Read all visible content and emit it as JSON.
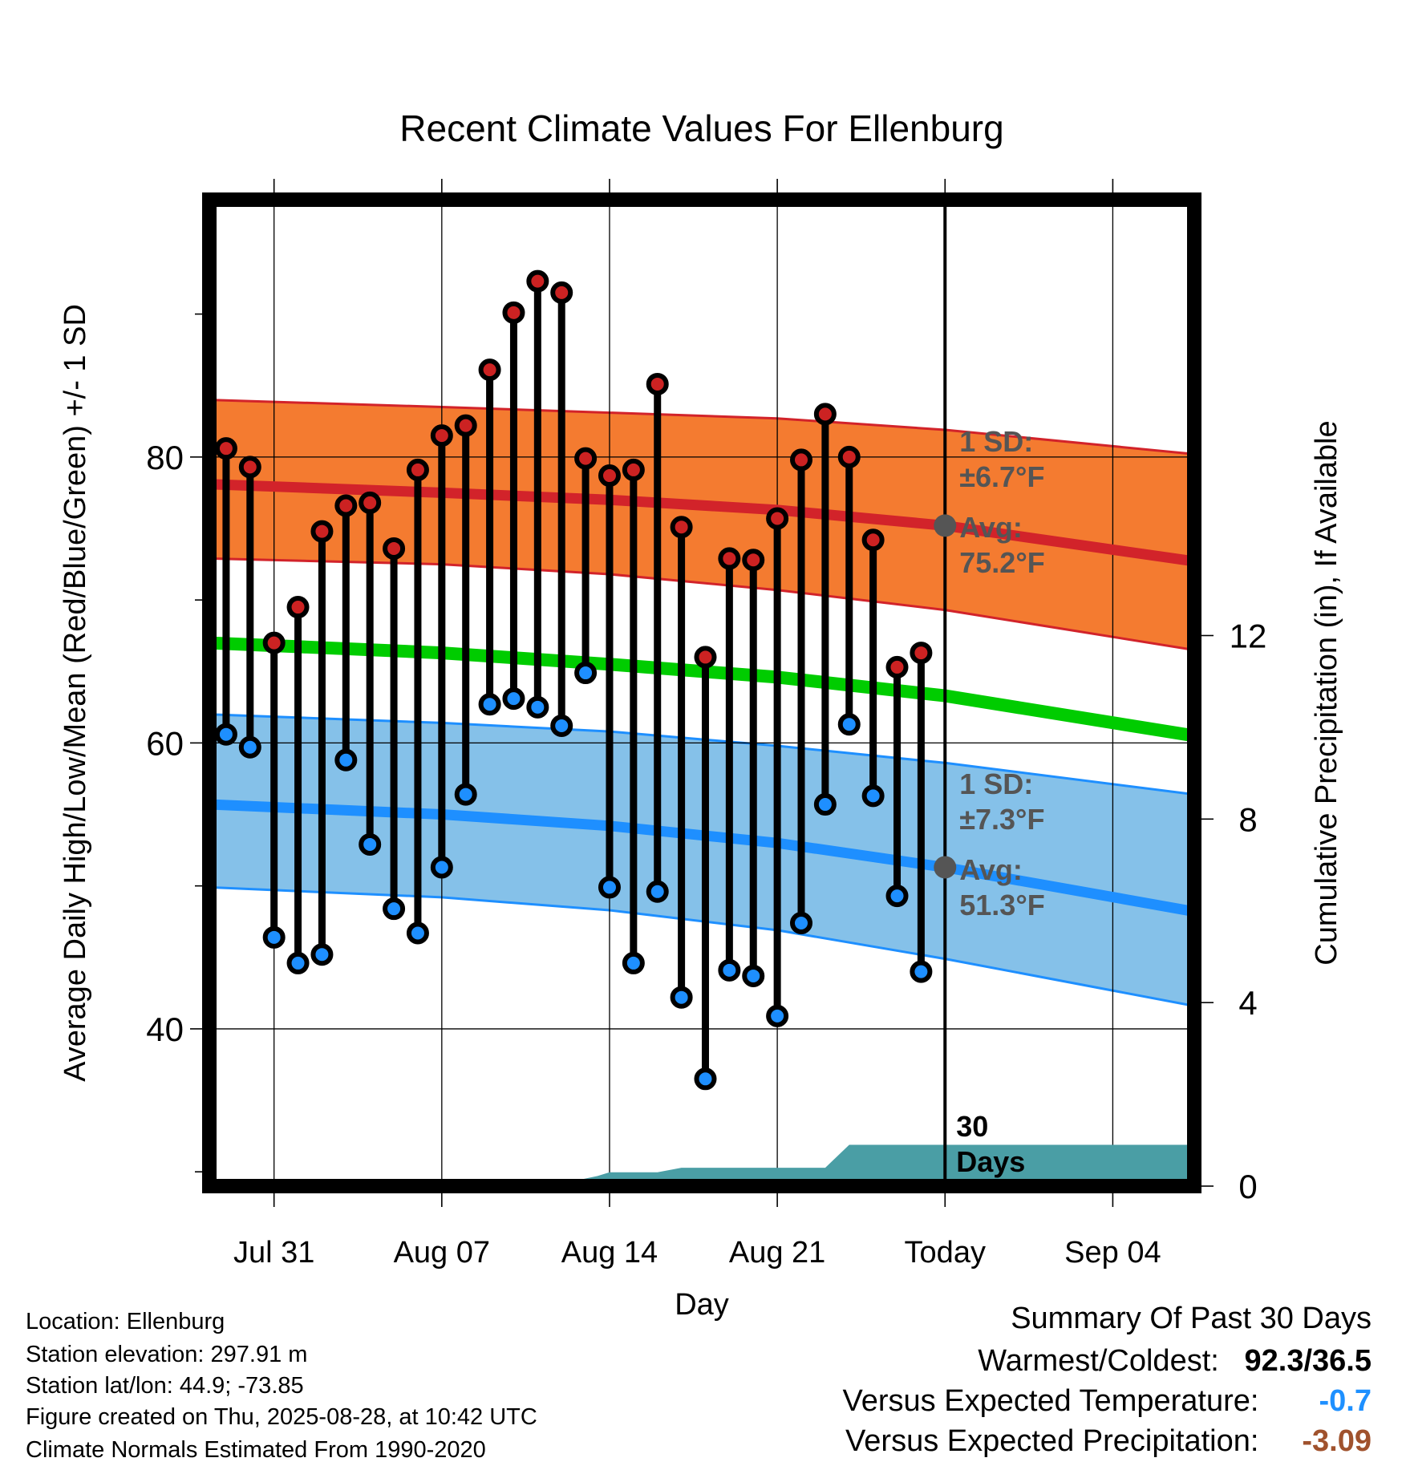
{
  "chart_data": {
    "type": "line",
    "title": "Recent Climate Values For Ellenburg",
    "xlabel": "Day",
    "ylabel": "Average Daily High/Low/Mean (Red/Blue/Green) +/- 1 SD",
    "y2label": "Cumulative Precipitation (in), If Available",
    "ylim": [
      29,
      98
    ],
    "y_ticks": [
      40,
      60,
      80
    ],
    "y2lim": [
      0,
      21.5
    ],
    "y2_ticks": [
      0,
      4,
      8,
      12
    ],
    "x_ticks": [
      "Jul 31",
      "Aug 07",
      "Aug 14",
      "Aug 21",
      "Today",
      "Sep 04"
    ],
    "x_tick_days": [
      0,
      7,
      14,
      21,
      28,
      35
    ],
    "xlim": [
      -2.7,
      38.4
    ],
    "grid": true,
    "today_day": 28,
    "today_label": "30 Days",
    "normal_high": {
      "x": [
        -2.7,
        7,
        14,
        21,
        28,
        38.4
      ],
      "avg": [
        78.1,
        77.5,
        77.0,
        76.3,
        75.2,
        72.7
      ],
      "upper": [
        84.0,
        83.5,
        83.1,
        82.7,
        81.9,
        80.2
      ],
      "lower": [
        72.9,
        72.5,
        71.8,
        70.7,
        69.3,
        66.5
      ],
      "sd_label": "1 SD:",
      "sd_value": "±6.7°F",
      "avg_label": "Avg:",
      "avg_value": "75.2°F"
    },
    "normal_low": {
      "x": [
        -2.7,
        7,
        14,
        21,
        28,
        38.4
      ],
      "avg": [
        55.7,
        55.0,
        54.2,
        53.0,
        51.3,
        48.2
      ],
      "upper": [
        62.0,
        61.4,
        60.8,
        59.8,
        58.6,
        56.4
      ],
      "lower": [
        49.9,
        49.2,
        48.3,
        46.9,
        44.9,
        41.6
      ],
      "sd_label": "1 SD:",
      "sd_value": "±7.3°F",
      "avg_label": "Avg:",
      "avg_value": "51.3°F"
    },
    "normal_mean": {
      "x": [
        -2.7,
        7,
        14,
        21,
        28,
        38.4
      ],
      "values": [
        67.0,
        66.3,
        65.5,
        64.6,
        63.3,
        60.5
      ]
    },
    "days": [
      -2,
      -1,
      0,
      1,
      2,
      3,
      4,
      5,
      6,
      7,
      8,
      9,
      10,
      11,
      12,
      13,
      14,
      15,
      16,
      17,
      18,
      19,
      20,
      21,
      22,
      23,
      24,
      25,
      26,
      27
    ],
    "highs": [
      80.6,
      79.3,
      67.0,
      69.5,
      74.8,
      76.6,
      76.8,
      73.6,
      79.1,
      81.5,
      82.2,
      86.1,
      90.1,
      92.3,
      91.5,
      79.9,
      78.7,
      79.1,
      85.1,
      75.1,
      66.0,
      72.9,
      72.8,
      75.7,
      79.8,
      83.0,
      80.0,
      74.2,
      65.3,
      66.3
    ],
    "lows": [
      60.6,
      59.7,
      46.4,
      44.6,
      45.2,
      58.8,
      52.9,
      48.4,
      46.7,
      51.3,
      56.4,
      62.7,
      63.1,
      62.5,
      61.2,
      64.9,
      49.9,
      44.6,
      49.6,
      42.2,
      36.5,
      44.1,
      43.7,
      40.9,
      47.4,
      55.7,
      61.3,
      56.3,
      49.3,
      44.0
    ],
    "precip": {
      "x": [
        -2.7,
        10.5,
        11.5,
        13.5,
        14,
        16,
        17,
        18,
        19,
        20,
        21,
        22,
        23,
        24,
        25,
        26,
        27,
        28,
        38.4
      ],
      "values": [
        0,
        0,
        0,
        0.22,
        0.3,
        0.3,
        0.4,
        0.4,
        0.4,
        0.4,
        0.4,
        0.4,
        0.4,
        0.9,
        0.9,
        0.9,
        0.9,
        0.9,
        0.9
      ]
    }
  },
  "footer": {
    "location": "Location: Ellenburg",
    "elevation": "Station elevation: 297.91 m",
    "latlon": "Station lat/lon: 44.9; -73.85",
    "created": "Figure created on Thu, 2025-08-28, at 10:42 UTC",
    "normals": "Climate Normals Estimated From 1990-2020"
  },
  "summary": {
    "heading": "Summary Of Past 30 Days",
    "warm_cold_label": "Warmest/Coldest:",
    "warm_cold_value": "92.3/36.5",
    "temp_label": "Versus Expected Temperature:",
    "temp_value": "-0.7",
    "precip_label": "Versus Expected Precipitation:",
    "precip_value": "-3.09",
    "colors": {
      "temp": "#1e90ff",
      "precip": "#a0522d"
    }
  },
  "colors": {
    "high_band": "#f47b30",
    "high_line": "#d2232a",
    "low_band": "#85c1e9",
    "low_line": "#1e8fff",
    "mean_line": "#00cc00",
    "precip_fill": "#4a9ea5",
    "high_dot": "#cc2222",
    "low_dot": "#1e8fff",
    "annotation": "#555555"
  }
}
